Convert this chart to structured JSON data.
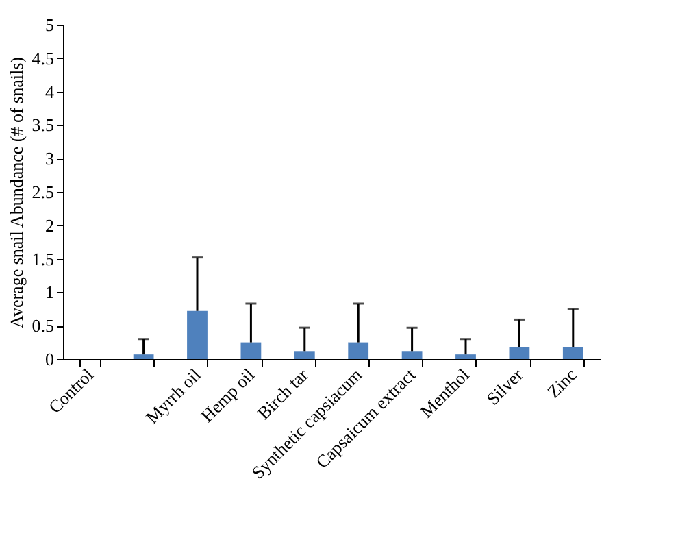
{
  "chart_data": {
    "type": "bar",
    "ylabel": "Average snail Abundance (# of snails)",
    "categories": [
      "Control",
      null,
      "Myrrh oil",
      "Hemp oil",
      "Birch tar",
      "Synthetic capsiacum",
      "Capsaicum extract",
      "Menthol",
      "Silver",
      "Zinc"
    ],
    "values": [
      0,
      0.07,
      0.72,
      0.25,
      0.12,
      0.25,
      0.12,
      0.07,
      0.18,
      0.18
    ],
    "errors": [
      null,
      [
        0.07,
        0.3
      ],
      [
        0.72,
        1.52
      ],
      [
        0.25,
        0.83
      ],
      [
        0.12,
        0.47
      ],
      [
        0.25,
        0.83
      ],
      [
        0.12,
        0.47
      ],
      [
        0.07,
        0.3
      ],
      [
        0.18,
        0.59
      ],
      [
        0.18,
        0.75
      ]
    ],
    "color": "#4f81bd",
    "ylim": [
      0,
      5
    ],
    "yticks": [
      0,
      0.5,
      1,
      1.5,
      2,
      2.5,
      3,
      3.5,
      4,
      4.5,
      5
    ],
    "grid": false
  }
}
